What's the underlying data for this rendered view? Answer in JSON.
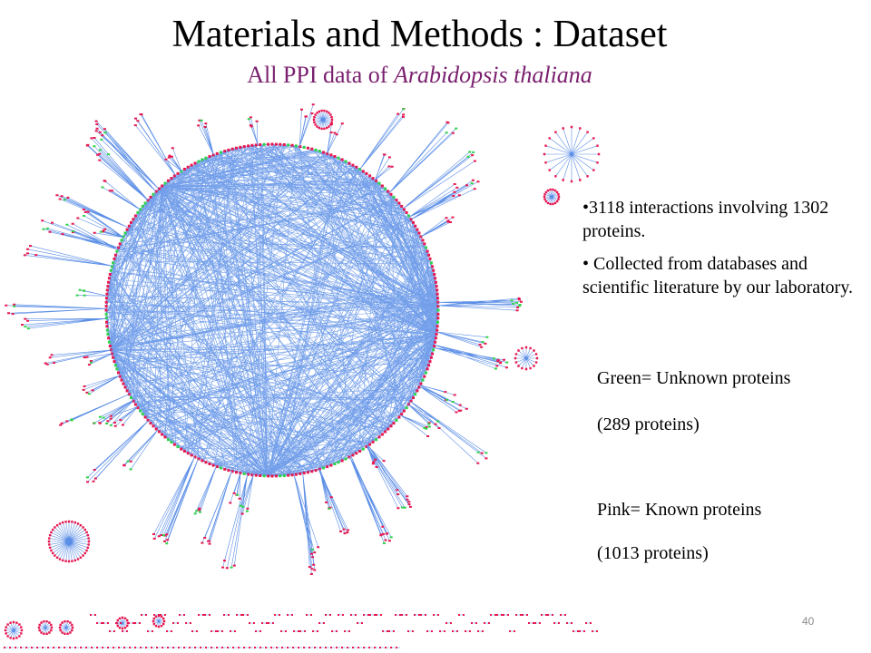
{
  "slide": {
    "title": "Materials and Methods : Dataset",
    "subtitle_prefix": "All PPI data of ",
    "subtitle_species": "Arabidopsis thaliana",
    "bullets": [
      "•3118 interactions involving 1302 proteins.",
      "• Collected from databases and scientific literature by our laboratory."
    ],
    "legend": {
      "green_label": "Green= Unknown proteins",
      "green_count": "(289 proteins)",
      "pink_label": "Pink= Known proteins",
      "pink_count": "(1013 proteins)"
    },
    "page_number": "40"
  },
  "colors": {
    "edge": "#5b8ee6",
    "known_node": "#e8174f",
    "unknown_node": "#2fd24a",
    "subtitle": "#7a1f6e"
  },
  "figure": {
    "description_icon": "protein-interaction-network",
    "known_proteins": 1013,
    "unknown_proteins": 289,
    "interactions": 3118
  }
}
